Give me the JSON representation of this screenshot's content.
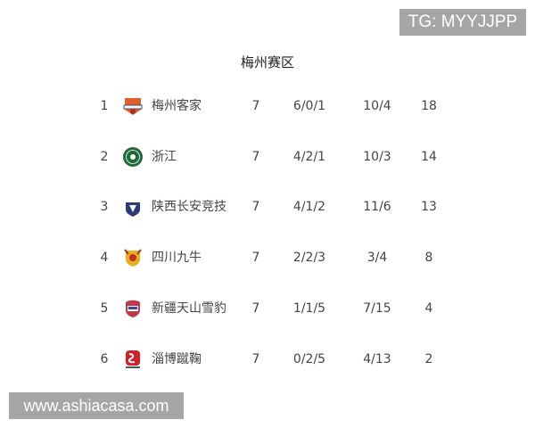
{
  "watermarks": {
    "top": "TG: MYYJJPP",
    "bottom": "www.ashiacasa.com"
  },
  "title": "梅州赛区",
  "rows": [
    {
      "rank": "1",
      "team": "梅州客家",
      "logo": "meizhou-hakka-crest-icon",
      "logo_color": "#e0602a",
      "played": "7",
      "record": "6/0/1",
      "goals": "10/4",
      "points": "18"
    },
    {
      "rank": "2",
      "team": "浙江",
      "logo": "zhejiang-crest-icon",
      "logo_color": "#1f6b3a",
      "played": "7",
      "record": "4/2/1",
      "goals": "10/3",
      "points": "14"
    },
    {
      "rank": "3",
      "team": "陕西长安竞技",
      "logo": "shaanxi-changan-crest-icon",
      "logo_color": "#2b3a7a",
      "played": "7",
      "record": "4/1/2",
      "goals": "11/6",
      "points": "13"
    },
    {
      "rank": "4",
      "team": "四川九牛",
      "logo": "sichuan-jiuniu-crest-icon",
      "logo_color": "#e8b020",
      "played": "7",
      "record": "2/2/3",
      "goals": "3/4",
      "points": "8"
    },
    {
      "rank": "5",
      "team": "新疆天山雪豹",
      "logo": "xinjiang-snow-leopard-crest-icon",
      "logo_color": "#c0394a",
      "played": "7",
      "record": "1/1/5",
      "goals": "7/15",
      "points": "4"
    },
    {
      "rank": "6",
      "team": "淄博蹴鞠",
      "logo": "zibo-cuju-crest-icon",
      "logo_color": "#d0202a",
      "played": "7",
      "record": "0/2/5",
      "goals": "4/13",
      "points": "2"
    }
  ]
}
